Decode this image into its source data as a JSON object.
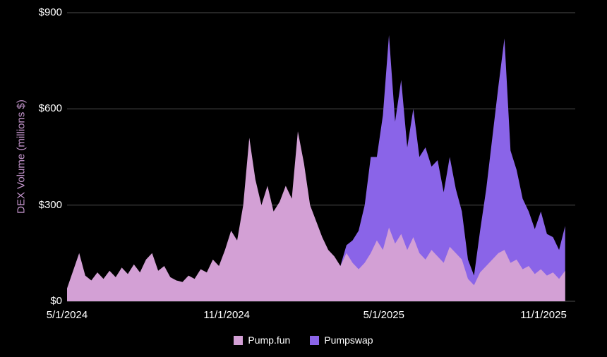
{
  "chart": {
    "background": "#000000",
    "text_color": "#ffffff",
    "grid_color": "#4d4d4d"
  },
  "chart_data": {
    "type": "area",
    "stacked": true,
    "title": "",
    "y_axis_title": "DEX Volume (millions $)",
    "y_axis_title_color": "#c495cd",
    "ylim": [
      0,
      900
    ],
    "grid": "horizontal",
    "legend_position": "bottom-center",
    "y_ticks": [
      {
        "label": "$0",
        "value": 0
      },
      {
        "label": "$300",
        "value": 300
      },
      {
        "label": "$600",
        "value": 600
      },
      {
        "label": "$900",
        "value": 900
      }
    ],
    "x_ticks": [
      {
        "label": "5/1/2024",
        "date": "2024-05-01"
      },
      {
        "label": "11/1/2024",
        "date": "2024-11-01"
      },
      {
        "label": "5/1/2025",
        "date": "2025-05-01"
      },
      {
        "label": "11/1/2025",
        "date": "2025-11-01"
      }
    ],
    "x": [
      "2024-05-01",
      "2024-05-08",
      "2024-05-15",
      "2024-05-22",
      "2024-05-29",
      "2024-06-05",
      "2024-06-12",
      "2024-06-19",
      "2024-06-26",
      "2024-07-03",
      "2024-07-10",
      "2024-07-17",
      "2024-07-24",
      "2024-07-31",
      "2024-08-07",
      "2024-08-14",
      "2024-08-21",
      "2024-08-28",
      "2024-09-04",
      "2024-09-11",
      "2024-09-18",
      "2024-09-25",
      "2024-10-02",
      "2024-10-09",
      "2024-10-16",
      "2024-10-23",
      "2024-10-30",
      "2024-11-06",
      "2024-11-13",
      "2024-11-20",
      "2024-11-27",
      "2024-12-04",
      "2024-12-11",
      "2024-12-18",
      "2024-12-25",
      "2025-01-01",
      "2025-01-08",
      "2025-01-15",
      "2025-01-22",
      "2025-01-29",
      "2025-02-05",
      "2025-02-12",
      "2025-02-19",
      "2025-02-26",
      "2025-03-05",
      "2025-03-12",
      "2025-03-19",
      "2025-03-26",
      "2025-04-02",
      "2025-04-09",
      "2025-04-16",
      "2025-04-23",
      "2025-04-30",
      "2025-05-07",
      "2025-05-14",
      "2025-05-21",
      "2025-05-28",
      "2025-06-04",
      "2025-06-11",
      "2025-06-18",
      "2025-06-25",
      "2025-07-02",
      "2025-07-09",
      "2025-07-16",
      "2025-07-23",
      "2025-07-30",
      "2025-08-06",
      "2025-08-13",
      "2025-08-20",
      "2025-08-27",
      "2025-09-03",
      "2025-09-10",
      "2025-09-17",
      "2025-09-24",
      "2025-10-01",
      "2025-10-08",
      "2025-10-15",
      "2025-10-22",
      "2025-10-29",
      "2025-11-05",
      "2025-11-12",
      "2025-11-19",
      "2025-11-26"
    ],
    "series": [
      {
        "name": "Pump.fun",
        "color": "#d3a0d5",
        "values": [
          40,
          95,
          150,
          80,
          65,
          90,
          70,
          95,
          75,
          105,
          85,
          115,
          90,
          130,
          150,
          95,
          110,
          75,
          65,
          60,
          80,
          70,
          100,
          90,
          130,
          110,
          160,
          220,
          190,
          300,
          510,
          380,
          300,
          360,
          280,
          310,
          360,
          320,
          530,
          430,
          300,
          250,
          200,
          160,
          140,
          110,
          150,
          120,
          100,
          120,
          150,
          190,
          160,
          230,
          180,
          210,
          160,
          200,
          150,
          130,
          160,
          140,
          120,
          170,
          150,
          130,
          70,
          50,
          90,
          110,
          130,
          150,
          160,
          120,
          130,
          100,
          110,
          85,
          100,
          80,
          90,
          70,
          95
        ]
      },
      {
        "name": "Pumpswap",
        "color": "#8a64e8",
        "values": [
          0,
          0,
          0,
          0,
          0,
          0,
          0,
          0,
          0,
          0,
          0,
          0,
          0,
          0,
          0,
          0,
          0,
          0,
          0,
          0,
          0,
          0,
          0,
          0,
          0,
          0,
          0,
          0,
          0,
          0,
          0,
          0,
          0,
          0,
          0,
          0,
          0,
          0,
          0,
          0,
          0,
          0,
          0,
          0,
          0,
          0,
          25,
          70,
          120,
          180,
          300,
          260,
          420,
          600,
          380,
          480,
          320,
          400,
          300,
          350,
          260,
          300,
          220,
          280,
          200,
          150,
          60,
          30,
          130,
          240,
          380,
          520,
          660,
          350,
          280,
          220,
          170,
          140,
          180,
          130,
          110,
          90,
          140
        ]
      }
    ]
  }
}
